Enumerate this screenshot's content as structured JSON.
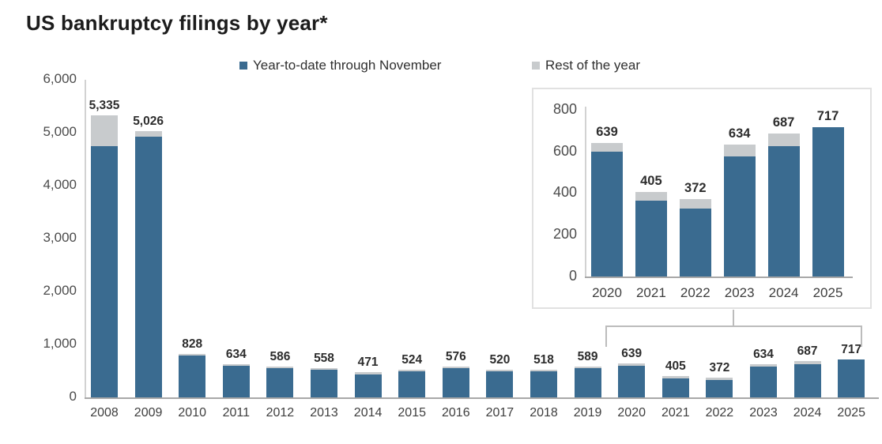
{
  "title": "US bankruptcy filings by year*",
  "legend": [
    {
      "label": "Year-to-date through November",
      "color": "#3a6b90"
    },
    {
      "label": "Rest of the year",
      "color": "#c8cbcd"
    }
  ],
  "colors": {
    "ytd_bar": "#3a6b90",
    "rest_bar": "#c8cbcd",
    "axis_line": "#a8a8a8",
    "y_axis_line": "#d2d2d2",
    "inset_border": "#e1e1e1",
    "bracket_line": "#bcbcbc"
  },
  "chart_data": [
    {
      "type": "bar",
      "name": "main-chart",
      "stacked": true,
      "title": "US bankruptcy filings by year*",
      "categories": [
        "2008",
        "2009",
        "2010",
        "2011",
        "2012",
        "2013",
        "2014",
        "2015",
        "2016",
        "2017",
        "2018",
        "2019",
        "2020",
        "2021",
        "2022",
        "2023",
        "2024",
        "2025"
      ],
      "series": [
        {
          "name": "Year-to-date through November",
          "values": [
            4750,
            4925,
            790,
            600,
            555,
            525,
            440,
            495,
            545,
            490,
            490,
            555,
            600,
            363,
            327,
            577,
            627,
            717
          ]
        },
        {
          "name": "Rest of the year",
          "values": [
            585,
            101,
            38,
            34,
            31,
            33,
            31,
            29,
            31,
            30,
            28,
            34,
            39,
            42,
            45,
            57,
            60,
            0
          ]
        }
      ],
      "totals": [
        5335,
        5026,
        828,
        634,
        586,
        558,
        471,
        524,
        576,
        520,
        518,
        589,
        639,
        405,
        372,
        634,
        687,
        717
      ],
      "value_labels": [
        "5,335",
        "5,026",
        "828",
        "634",
        "586",
        "558",
        "471",
        "524",
        "576",
        "520",
        "518",
        "589",
        "639",
        "405",
        "372",
        "634",
        "687",
        "717"
      ],
      "xlabel": "",
      "ylabel": "",
      "ylim": [
        0,
        6000
      ],
      "grid": false,
      "legend_position": "top",
      "yticks": [
        {
          "label": "6,000",
          "value": 6000
        },
        {
          "label": "5,000",
          "value": 5000
        },
        {
          "label": "4,000",
          "value": 4000
        },
        {
          "label": "3,000",
          "value": 3000
        },
        {
          "label": "2,000",
          "value": 2000
        },
        {
          "label": "1,000",
          "value": 1000
        },
        {
          "label": "0",
          "value": 0
        }
      ]
    },
    {
      "type": "bar",
      "name": "inset-chart",
      "stacked": true,
      "title": "",
      "categories": [
        "2020",
        "2021",
        "2022",
        "2023",
        "2024",
        "2025"
      ],
      "series": [
        {
          "name": "Year-to-date through November",
          "values": [
            600,
            363,
            327,
            577,
            627,
            717
          ]
        },
        {
          "name": "Rest of the year",
          "values": [
            39,
            42,
            45,
            57,
            60,
            0
          ]
        }
      ],
      "totals": [
        639,
        405,
        372,
        634,
        687,
        717
      ],
      "value_labels": [
        "639",
        "405",
        "372",
        "634",
        "687",
        "717"
      ],
      "xlabel": "",
      "ylabel": "",
      "ylim": [
        0,
        800
      ],
      "grid": false,
      "yticks": [
        {
          "label": "800",
          "value": 800
        },
        {
          "label": "600",
          "value": 600
        },
        {
          "label": "400",
          "value": 400
        },
        {
          "label": "200",
          "value": 200
        },
        {
          "label": "0",
          "value": 0
        }
      ]
    }
  ]
}
